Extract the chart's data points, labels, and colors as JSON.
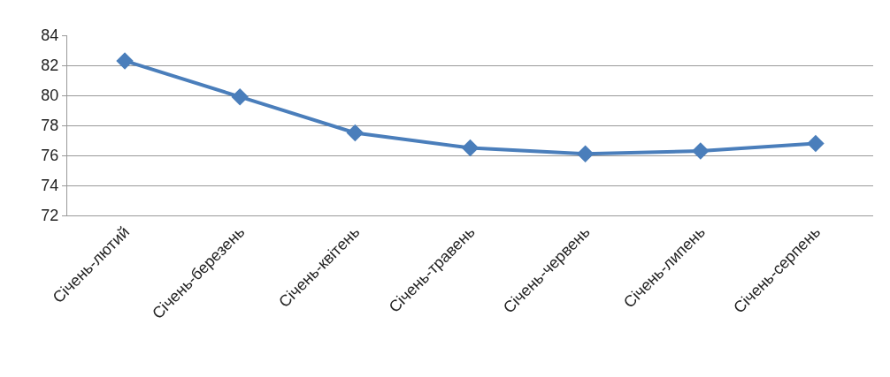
{
  "chart_data": {
    "type": "line",
    "categories": [
      "Січень-лютий",
      "Січень-березень",
      "Січень-квітень",
      "Січень-травень",
      "Січень-червень",
      "Січень-липень",
      "Січень-серпень"
    ],
    "series": [
      {
        "color": "#4a7ebb",
        "values": [
          82.3,
          79.9,
          77.5,
          76.5,
          76.1,
          76.3,
          76.8
        ]
      }
    ],
    "ylim": [
      72,
      84
    ],
    "yticks": [
      72,
      74,
      76,
      78,
      80,
      82,
      84
    ],
    "grid": "y",
    "legend": false,
    "marker": "diamond",
    "line_style": "solid"
  }
}
